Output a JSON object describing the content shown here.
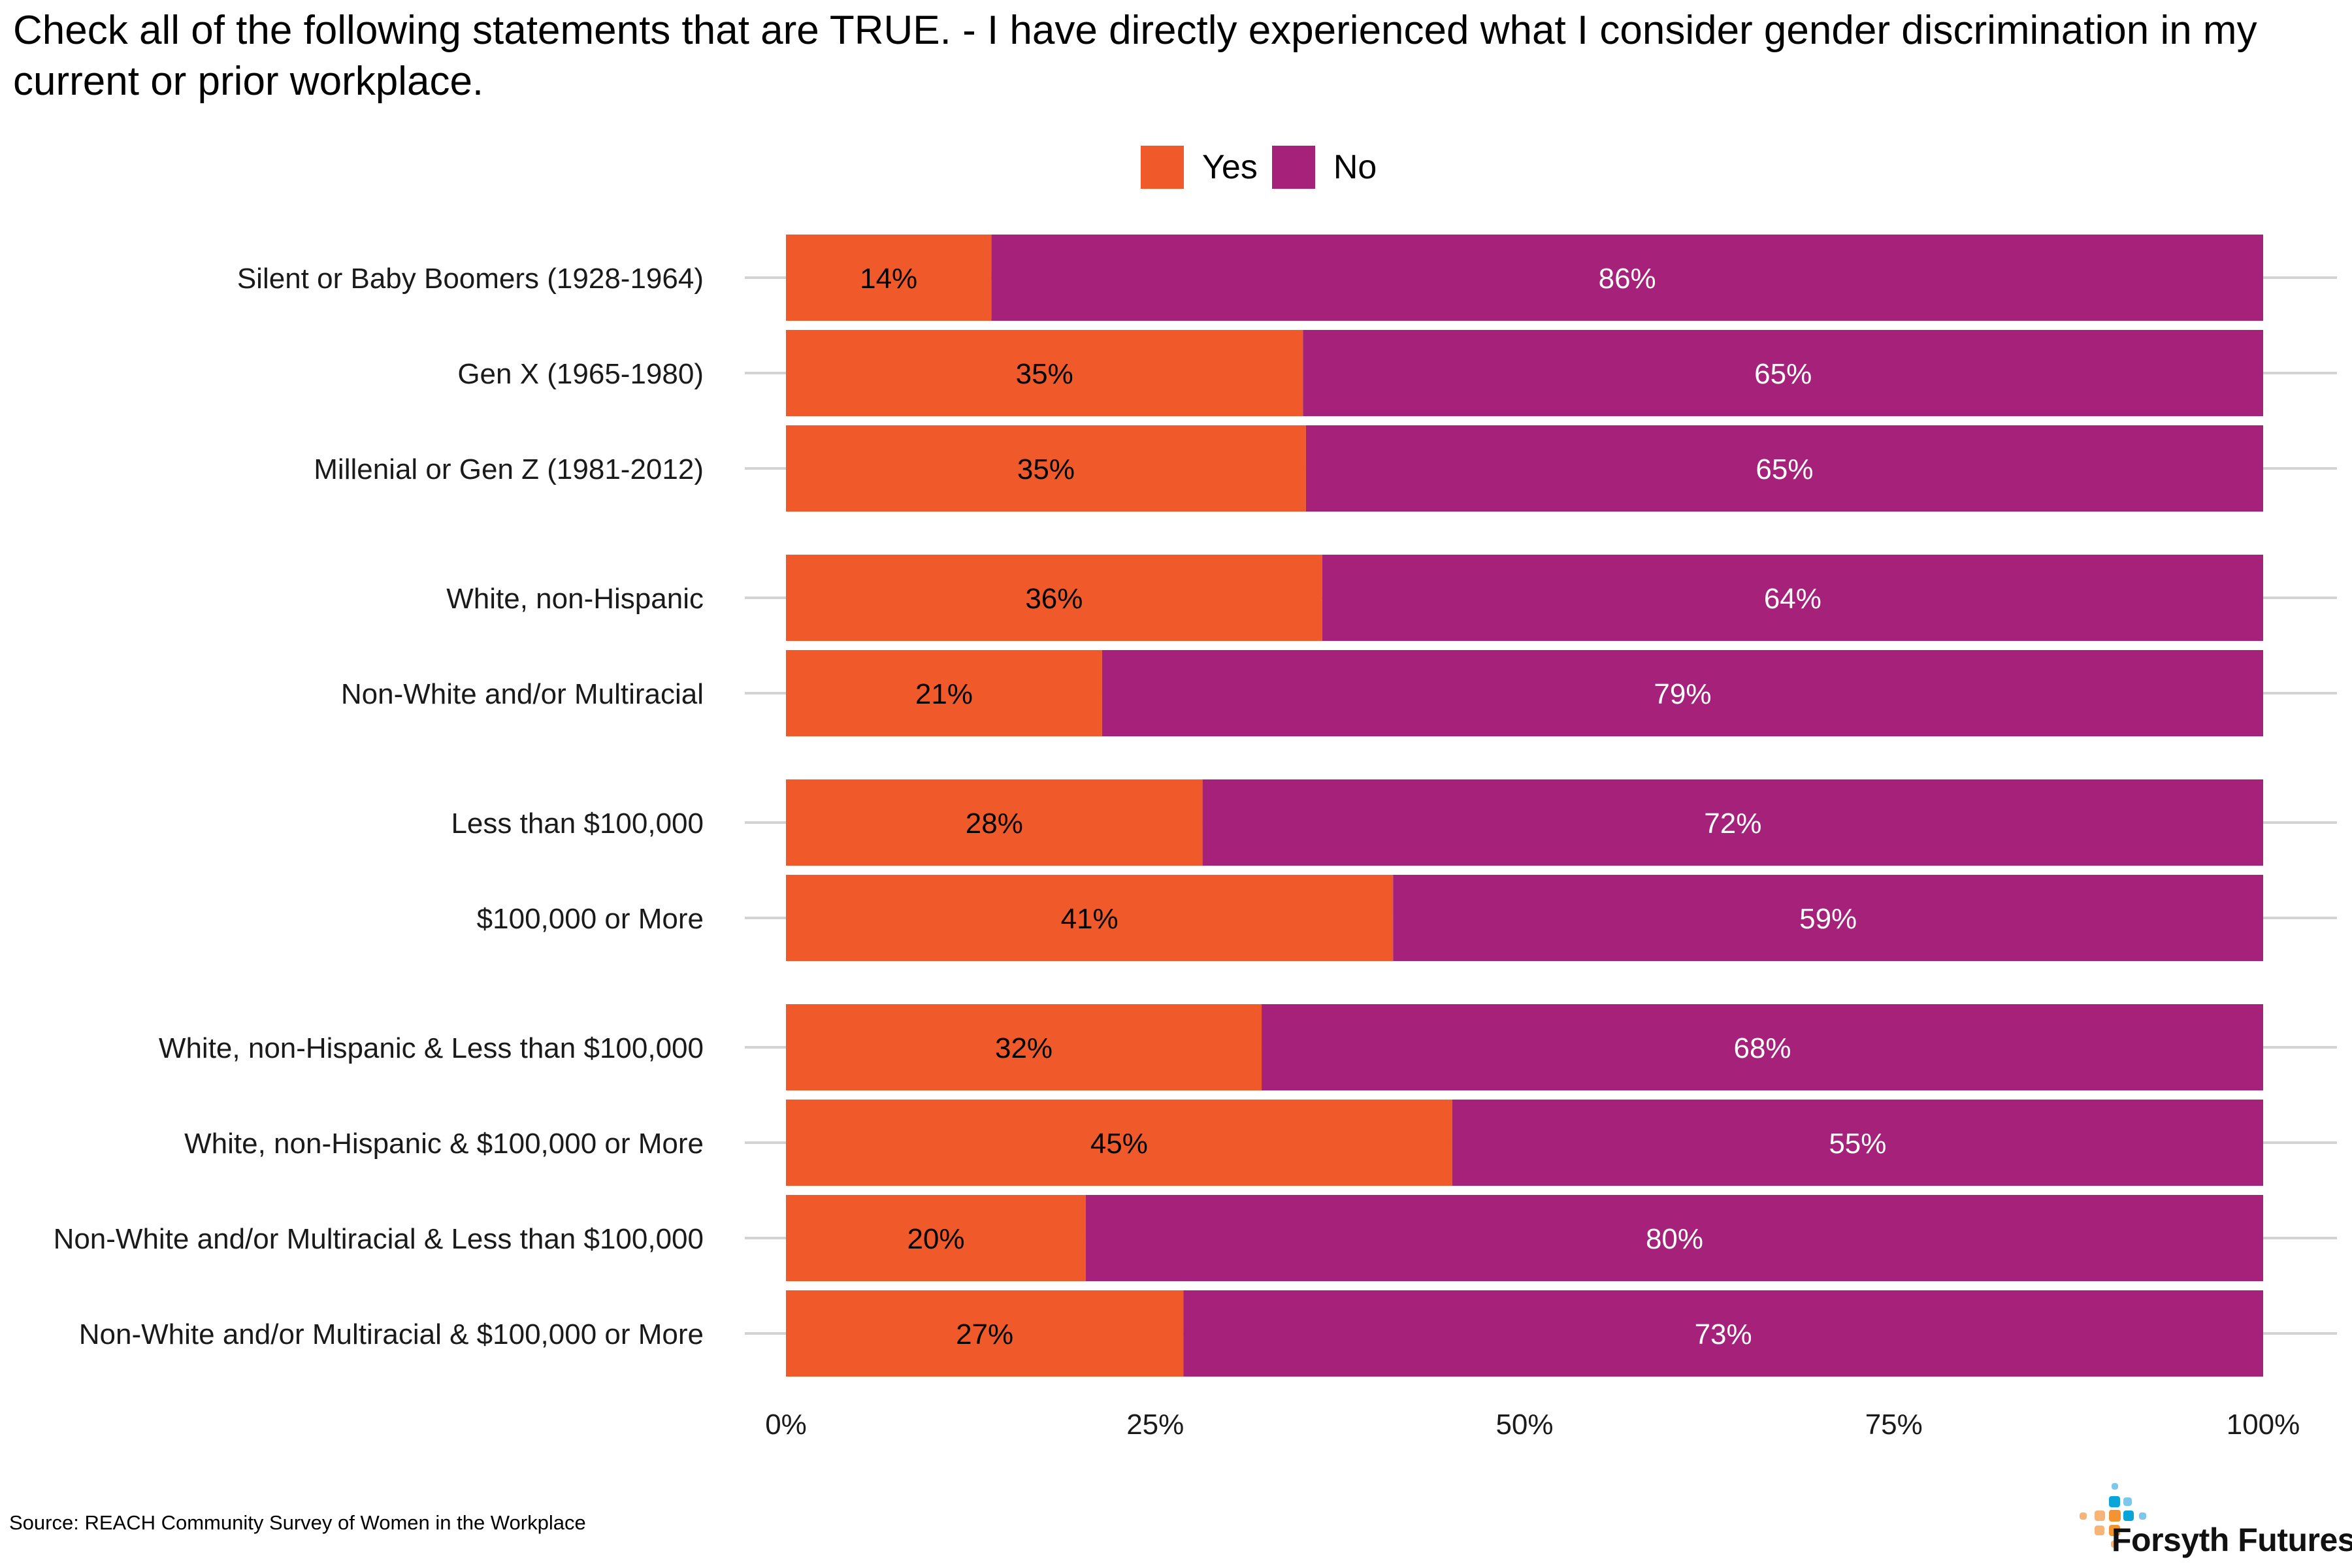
{
  "title": "Check all of the following statements that are TRUE. - I have directly experienced what I consider gender discrimination in my current or prior workplace.",
  "source": "Source: REACH Community Survey of Women in the Workplace",
  "logo": {
    "name": "Forsyth Futures",
    "colors": {
      "blue": "#0aa5d8",
      "light_blue": "#7cc7ea",
      "orange": "#f39432",
      "light_orange": "#f8b477"
    }
  },
  "chart_data": {
    "type": "bar",
    "orientation": "horizontal",
    "stacked": true,
    "title": "Check all of the following statements that are TRUE. - I have directly experienced what I consider gender discrimination in my current or prior workplace.",
    "xlabel": "",
    "ylabel": "",
    "xlim": [
      0,
      100
    ],
    "x_ticks": [
      "0%",
      "25%",
      "50%",
      "75%",
      "100%"
    ],
    "x_tick_values": [
      0,
      25,
      50,
      75,
      100
    ],
    "grid": "horizontal gridlines at category centers",
    "legend": {
      "position": "top",
      "entries": [
        "Yes",
        "No"
      ]
    },
    "colors": {
      "Yes": "#f05a2b",
      "No": "#a6227a",
      "gridline": "#d3d3d3"
    },
    "groups": [
      [
        "Silent or Baby Boomers (1928-1964)",
        "Gen X (1965-1980)",
        "Millenial or Gen Z (1981-2012)"
      ],
      [
        "White, non-Hispanic",
        "Non-White and/or Multiracial"
      ],
      [
        "Less than $100,000",
        "$100,000 or More"
      ],
      [
        "White, non-Hispanic & Less than $100,000",
        "White, non-Hispanic & $100,000 or More",
        "Non-White and/or Multiracial & Less than $100,000",
        "Non-White and/or Multiracial & $100,000 or More"
      ]
    ],
    "categories": [
      "Silent or Baby Boomers (1928-1964)",
      "Gen X (1965-1980)",
      "Millenial or Gen Z (1981-2012)",
      "White, non-Hispanic",
      "Non-White and/or Multiracial",
      "Less than $100,000",
      "$100,000 or More",
      "White, non-Hispanic & Less than $100,000",
      "White, non-Hispanic & $100,000 or More",
      "Non-White and/or Multiracial & Less than $100,000",
      "Non-White and/or Multiracial & $100,000 or More"
    ],
    "series": [
      {
        "name": "Yes",
        "values": [
          13.9,
          35.0,
          35.2,
          36.3,
          21.4,
          28.2,
          41.1,
          32.2,
          45.1,
          20.3,
          26.9
        ],
        "labels": [
          "14%",
          "35%",
          "35%",
          "36%",
          "21%",
          "28%",
          "41%",
          "32%",
          "45%",
          "20%",
          "27%"
        ]
      },
      {
        "name": "No",
        "values": [
          86.1,
          65.0,
          64.8,
          63.7,
          78.6,
          71.8,
          58.9,
          67.8,
          54.9,
          79.7,
          73.1
        ],
        "labels": [
          "86%",
          "65%",
          "65%",
          "64%",
          "79%",
          "72%",
          "59%",
          "68%",
          "55%",
          "80%",
          "73%"
        ]
      }
    ]
  }
}
